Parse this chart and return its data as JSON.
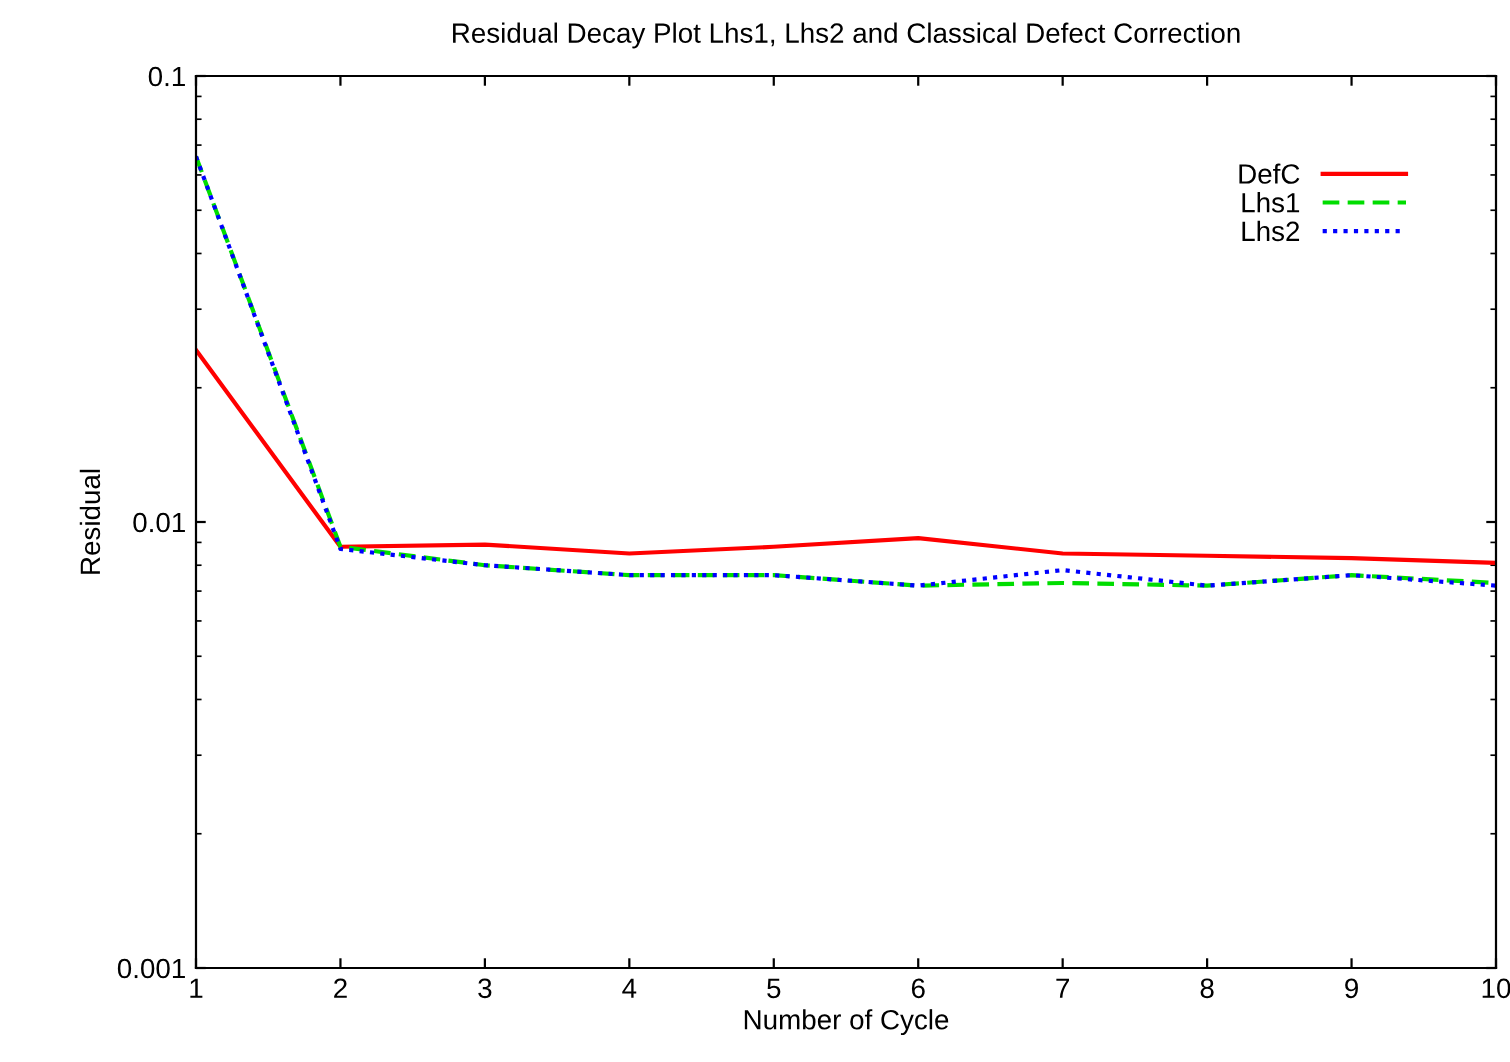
{
  "chart_data": {
    "type": "line",
    "title": "Residual Decay Plot Lhs1, Lhs2 and Classical Defect Correction",
    "xlabel": "Number of Cycle",
    "ylabel": "Residual",
    "x": [
      1,
      2,
      3,
      4,
      5,
      6,
      7,
      8,
      9,
      10
    ],
    "series": [
      {
        "name": "DefC",
        "color": "#ff0000",
        "line_style": "solid",
        "values": [
          0.0243,
          0.0088,
          0.0089,
          0.0085,
          0.0088,
          0.0092,
          0.0085,
          0.0084,
          0.0083,
          0.0081
        ]
      },
      {
        "name": "Lhs1",
        "color": "#00dd00",
        "line_style": "dashed",
        "values": [
          0.066,
          0.0088,
          0.008,
          0.0076,
          0.0076,
          0.0072,
          0.0073,
          0.0072,
          0.0076,
          0.0073
        ]
      },
      {
        "name": "Lhs2",
        "color": "#0000ff",
        "line_style": "dotted",
        "values": [
          0.066,
          0.0087,
          0.008,
          0.0076,
          0.0076,
          0.0072,
          0.0078,
          0.0072,
          0.0076,
          0.0072
        ]
      }
    ],
    "log": "y",
    "xlim": [
      1,
      10
    ],
    "xticks": [
      1,
      2,
      3,
      4,
      5,
      6,
      7,
      8,
      9,
      10
    ],
    "ylim": [
      0.001,
      0.1
    ],
    "yticks": [
      0.001,
      0.01,
      0.1
    ],
    "grid": false,
    "legend": "top right"
  }
}
